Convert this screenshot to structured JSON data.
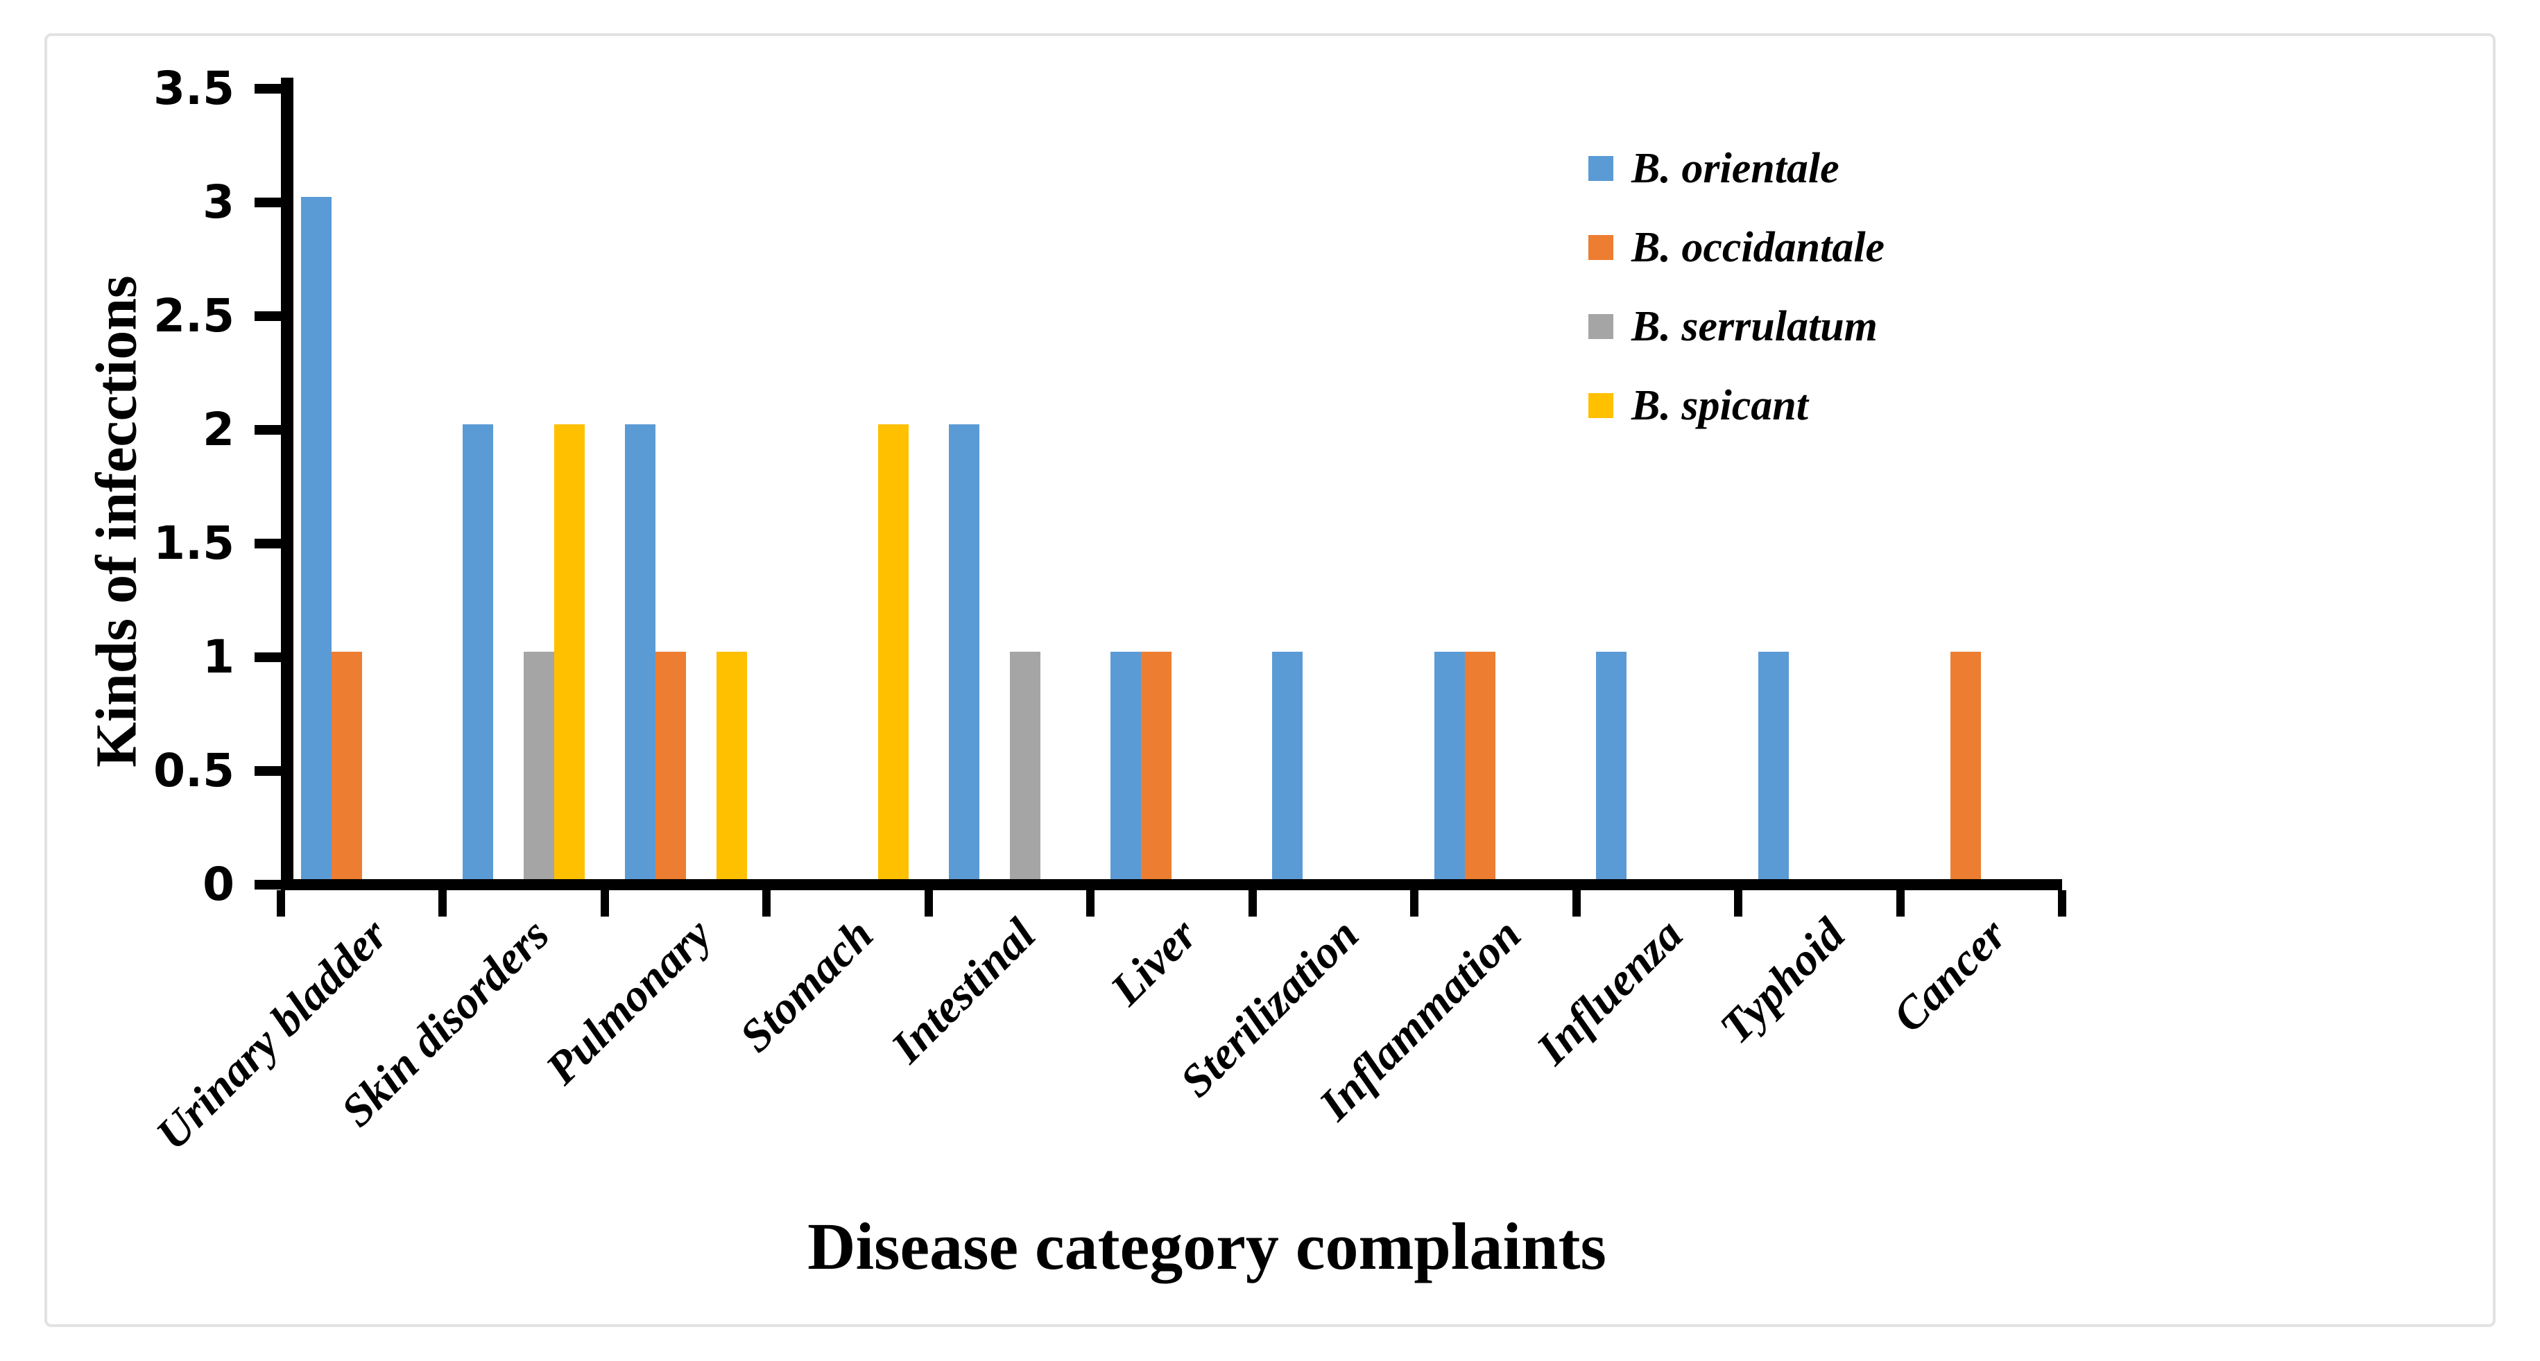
{
  "chart_data": {
    "type": "bar",
    "title": "",
    "xlabel": "Disease category complaints",
    "ylabel": "Kinds of infecctions",
    "categories": [
      "Urinary bladder",
      "Skin disorders",
      "Pulmonary",
      "Stomach",
      "Intestinal",
      "Liver",
      "Sterilization",
      "Inflammation",
      "Influenza",
      "Typhoid",
      "Cancer"
    ],
    "series": [
      {
        "name": "B. orientale",
        "color": "#5B9BD5",
        "values": [
          3,
          2,
          2,
          0,
          2,
          1,
          1,
          1,
          1,
          1,
          0
        ]
      },
      {
        "name": "B. occidantale",
        "color": "#ED7D31",
        "values": [
          1,
          0,
          1,
          0,
          0,
          1,
          0,
          1,
          0,
          0,
          1
        ]
      },
      {
        "name": "B. serrulatum",
        "color": "#A5A5A5",
        "values": [
          0,
          1,
          0,
          0,
          1,
          0,
          0,
          0,
          0,
          0,
          0
        ]
      },
      {
        "name": "B. spicant",
        "color": "#FFC000",
        "values": [
          0,
          2,
          1,
          2,
          0,
          0,
          0,
          0,
          0,
          0,
          0
        ]
      }
    ],
    "ylim": [
      0,
      3.5
    ],
    "ytick_step": 0.5,
    "yticks": [
      "0",
      "0.5",
      "1",
      "1.5",
      "2",
      "2.5",
      "3",
      "3.5"
    ],
    "grid": false,
    "legend_position": "upper-right",
    "axis_color": "#000000",
    "frame_border_color": "#e2e2e2",
    "background": "#ffffff"
  }
}
